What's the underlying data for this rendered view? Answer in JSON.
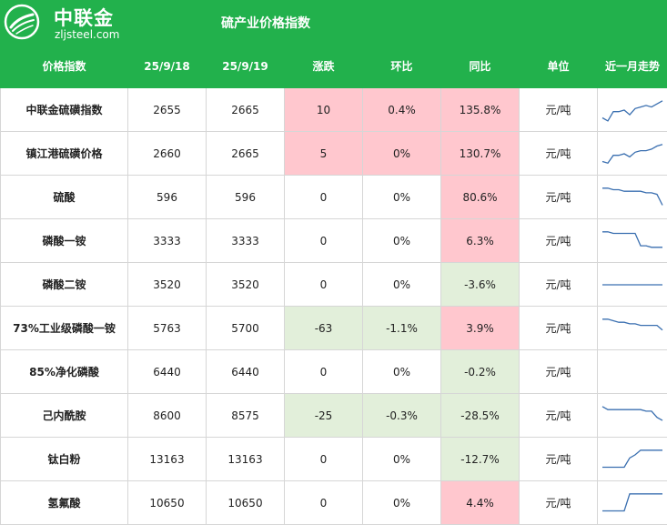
{
  "brand": {
    "name": "中联金",
    "url": "zljsteel.com"
  },
  "page_title": "硫产业价格指数",
  "headers": [
    "价格指数",
    "25/9/18",
    "25/9/19",
    "涨跌",
    "环比",
    "同比",
    "单位",
    "近一月走势"
  ],
  "colors": {
    "header_green": "#22b14c",
    "up_red": "#ffc7ce",
    "down_green": "#e2efda",
    "sparkline": "#3a6fb0"
  },
  "rows": [
    {
      "name": "中联金硫磺指数",
      "prev": "2655",
      "curr": "2665",
      "change": "10",
      "mom": "0.4%",
      "yoy": "135.8%",
      "unit": "元/吨",
      "change_tone": "red",
      "mom_tone": "red",
      "yoy_tone": "red",
      "trend": [
        20,
        18,
        24,
        24,
        25,
        22,
        26,
        27,
        28,
        27,
        29,
        31
      ]
    },
    {
      "name": "镇江港硫磺价格",
      "prev": "2660",
      "curr": "2665",
      "change": "5",
      "mom": "0%",
      "yoy": "130.7%",
      "unit": "元/吨",
      "change_tone": "red",
      "mom_tone": "red",
      "yoy_tone": "red",
      "trend": [
        20,
        19,
        24,
        24,
        25,
        23,
        26,
        27,
        27,
        28,
        30,
        31
      ]
    },
    {
      "name": "硫酸",
      "prev": "596",
      "curr": "596",
      "change": "0",
      "mom": "0%",
      "yoy": "80.6%",
      "unit": "元/吨",
      "change_tone": "none",
      "mom_tone": "none",
      "yoy_tone": "red",
      "trend": [
        31,
        31,
        30,
        30,
        29,
        29,
        29,
        29,
        28,
        28,
        27,
        20
      ]
    },
    {
      "name": "磷酸一铵",
      "prev": "3333",
      "curr": "3333",
      "change": "0",
      "mom": "0%",
      "yoy": "6.3%",
      "unit": "元/吨",
      "change_tone": "none",
      "mom_tone": "none",
      "yoy_tone": "red",
      "trend": [
        31,
        31,
        30,
        30,
        30,
        30,
        30,
        22,
        22,
        21,
        21,
        21
      ]
    },
    {
      "name": "磷酸二铵",
      "prev": "3520",
      "curr": "3520",
      "change": "0",
      "mom": "0%",
      "yoy": "-3.6%",
      "unit": "元/吨",
      "change_tone": "none",
      "mom_tone": "none",
      "yoy_tone": "green",
      "trend": [
        25,
        25,
        25,
        25,
        25,
        25,
        25,
        25,
        25,
        25,
        25,
        25
      ]
    },
    {
      "name": "73%工业级磷酸一铵",
      "prev": "5763",
      "curr": "5700",
      "change": "-63",
      "mom": "-1.1%",
      "yoy": "3.9%",
      "unit": "元/吨",
      "change_tone": "green",
      "mom_tone": "green",
      "yoy_tone": "red",
      "trend": [
        31,
        31,
        30,
        29,
        29,
        28,
        28,
        27,
        27,
        27,
        27,
        24
      ]
    },
    {
      "name": "85%净化磷酸",
      "prev": "6440",
      "curr": "6440",
      "change": "0",
      "mom": "0%",
      "yoy": "-0.2%",
      "unit": "元/吨",
      "change_tone": "none",
      "mom_tone": "none",
      "yoy_tone": "green",
      "trend": []
    },
    {
      "name": "己内酰胺",
      "prev": "8600",
      "curr": "8575",
      "change": "-25",
      "mom": "-0.3%",
      "yoy": "-28.5%",
      "unit": "元/吨",
      "change_tone": "green",
      "mom_tone": "green",
      "yoy_tone": "green",
      "trend": [
        31,
        29,
        29,
        29,
        29,
        29,
        29,
        29,
        28,
        28,
        24,
        22
      ]
    },
    {
      "name": "钛白粉",
      "prev": "13163",
      "curr": "13163",
      "change": "0",
      "mom": "0%",
      "yoy": "-12.7%",
      "unit": "元/吨",
      "change_tone": "none",
      "mom_tone": "none",
      "yoy_tone": "green",
      "trend": [
        20,
        20,
        20,
        20,
        20,
        26,
        28,
        31,
        31,
        31,
        31,
        31
      ]
    },
    {
      "name": "氢氟酸",
      "prev": "10650",
      "curr": "10650",
      "change": "0",
      "mom": "0%",
      "yoy": "4.4%",
      "unit": "元/吨",
      "change_tone": "none",
      "mom_tone": "none",
      "yoy_tone": "red",
      "trend": [
        20,
        20,
        20,
        20,
        20,
        31,
        31,
        31,
        31,
        31,
        31,
        31
      ]
    }
  ]
}
